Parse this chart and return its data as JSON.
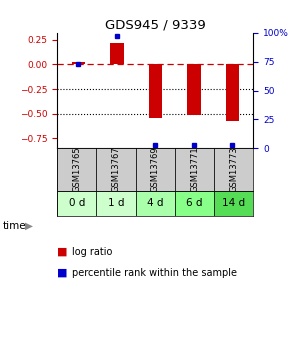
{
  "title": "GDS945 / 9339",
  "samples": [
    "GSM13765",
    "GSM13767",
    "GSM13769",
    "GSM13771",
    "GSM13773"
  ],
  "time_labels": [
    "0 d",
    "1 d",
    "4 d",
    "6 d",
    "14 d"
  ],
  "log_ratio": [
    0.02,
    0.22,
    -0.54,
    -0.51,
    -0.57
  ],
  "percentile_rank": [
    73,
    97,
    3,
    3,
    3
  ],
  "ylim_left": [
    -0.85,
    0.32
  ],
  "ylim_right": [
    0,
    100
  ],
  "yticks_left": [
    -0.75,
    -0.5,
    -0.25,
    0.0,
    0.25
  ],
  "yticks_right": [
    0,
    25,
    50,
    75,
    100
  ],
  "bar_color": "#cc0000",
  "dot_color": "#0000cc",
  "zero_line_color": "#cc0000",
  "left_axis_color": "#cc0000",
  "right_axis_color": "#0000cc",
  "gsm_bg": "#cccccc",
  "time_bg_colors": [
    "#ccffcc",
    "#ccffcc",
    "#aaffaa",
    "#88ff88",
    "#55dd55"
  ],
  "bar_width": 0.35
}
